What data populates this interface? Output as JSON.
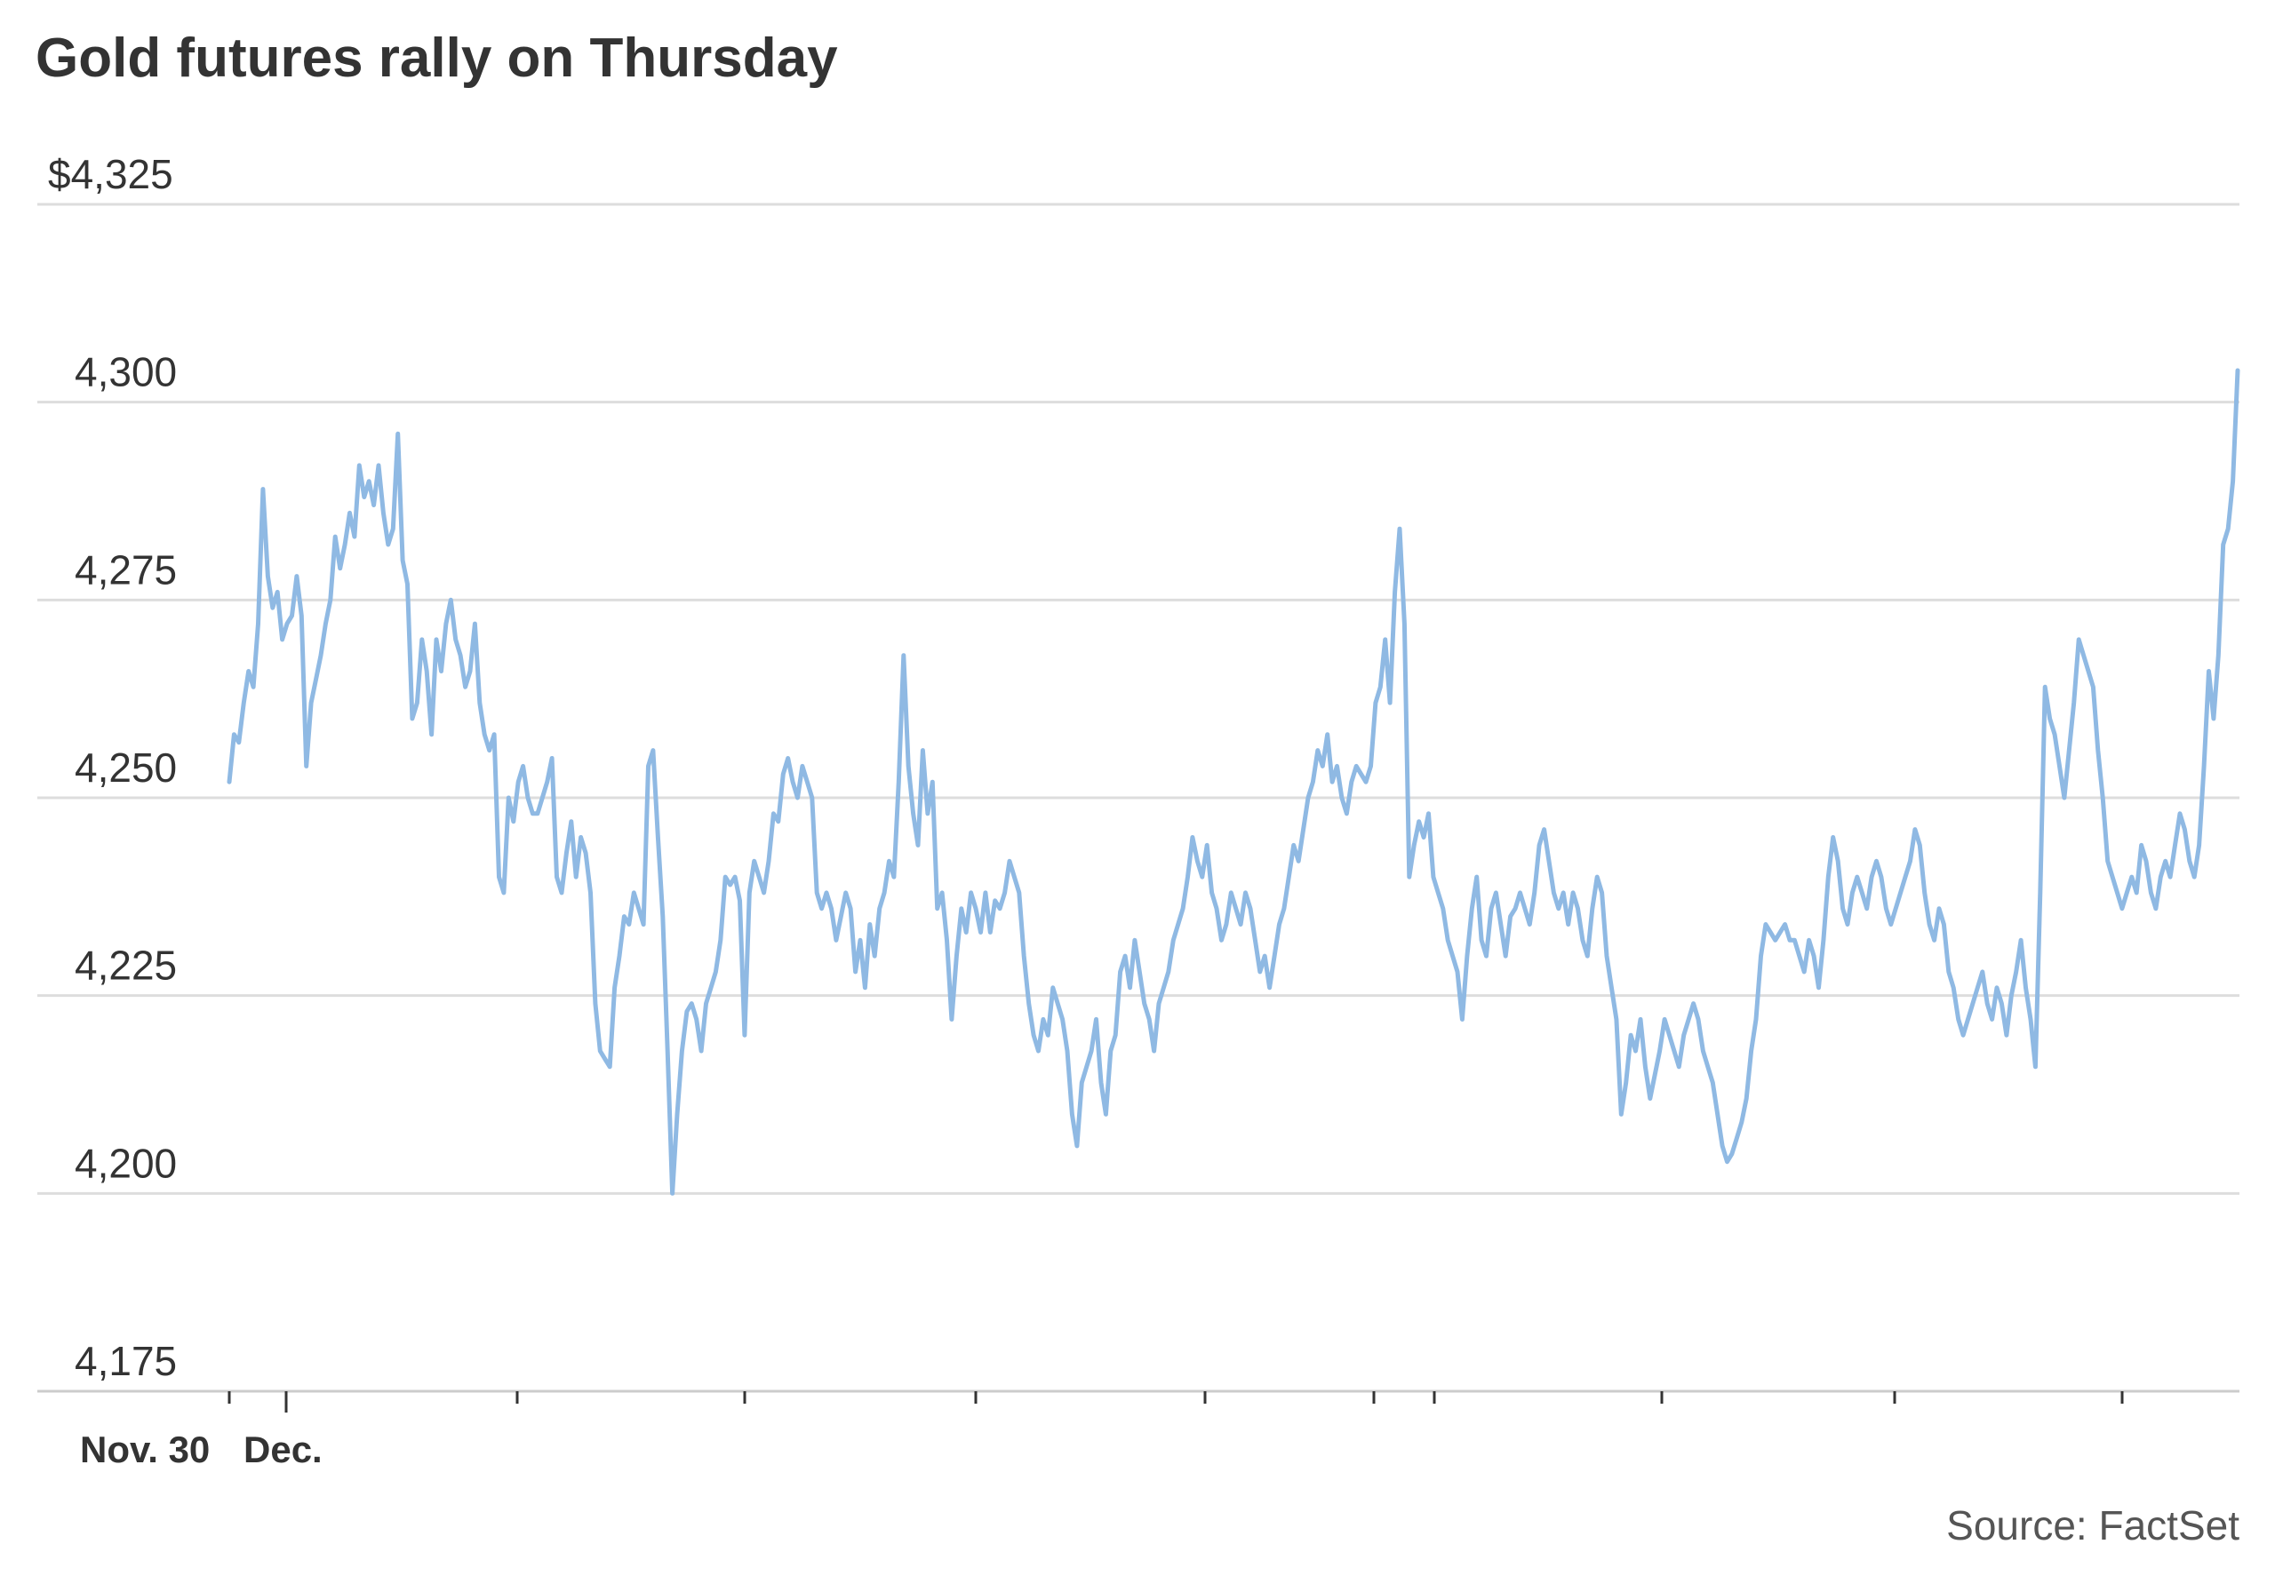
{
  "header": {
    "title": "Gold futures rally on Thursday"
  },
  "footer": {
    "source": "Source: FactSet"
  },
  "colors": {
    "line": "#8fb9e3",
    "grid": "#dddddd",
    "axis": "#cccccc",
    "text": "#333333"
  },
  "chart_data": {
    "type": "line",
    "title": "Gold futures rally on Thursday",
    "xlabel": "",
    "ylabel": "",
    "ylim": [
      4175,
      4325
    ],
    "y_ticks": [
      {
        "value": 4325,
        "label": "$4,325"
      },
      {
        "value": 4300,
        "label": "4,300"
      },
      {
        "value": 4275,
        "label": "4,275"
      },
      {
        "value": 4250,
        "label": "4,250"
      },
      {
        "value": 4225,
        "label": "4,225"
      },
      {
        "value": 4200,
        "label": "4,200"
      },
      {
        "value": 4175,
        "label": "4,175"
      }
    ],
    "x_tick_labels": [
      "Nov. 30",
      "Dec."
    ],
    "grid": true,
    "legend": "none",
    "series": [
      {
        "values": [
          4252,
          4258,
          4257,
          4262,
          4266,
          4264,
          4272,
          4289,
          4278,
          4274,
          4276,
          4270,
          4272,
          4273,
          4278,
          4273,
          4254,
          4262,
          4265,
          4268,
          4272,
          4275,
          4283,
          4279,
          4282,
          4286,
          4283,
          4292,
          4288,
          4290,
          4287,
          4292,
          4286,
          4282,
          4284,
          4296,
          4280,
          4277,
          4260,
          4262,
          4270,
          4266,
          4258,
          4270,
          4266,
          4272,
          4275,
          4270,
          4268,
          4264,
          4266,
          4272,
          4262,
          4258,
          4256,
          4258,
          4240,
          4238,
          4250,
          4247,
          4252,
          4254,
          4250,
          4248,
          4248,
          4250,
          4252,
          4255,
          4240,
          4238,
          4243,
          4247,
          4240,
          4245,
          4243,
          4238,
          4224,
          4218,
          4217,
          4216,
          4226,
          4230,
          4235,
          4234,
          4238,
          4236,
          4234,
          4254,
          4256,
          4245,
          4235,
          4218,
          4200,
          4210,
          4218,
          4223,
          4224,
          4222,
          4218,
          4224,
          4226,
          4228,
          4232,
          4240,
          4239,
          4240,
          4237,
          4220,
          4238,
          4242,
          4240,
          4238,
          4242,
          4248,
          4247,
          4253,
          4255,
          4252,
          4250,
          4254,
          4252,
          4250,
          4238,
          4236,
          4238,
          4236,
          4232,
          4235,
          4238,
          4236,
          4228,
          4232,
          4226,
          4234,
          4230,
          4236,
          4238,
          4242,
          4240,
          4252,
          4268,
          4254,
          4248,
          4244,
          4256,
          4248,
          4252,
          4236,
          4238,
          4232,
          4222,
          4230,
          4236,
          4233,
          4238,
          4236,
          4233,
          4238,
          4233,
          4237,
          4236,
          4238,
          4242,
          4240,
          4238,
          4230,
          4224,
          4220,
          4218,
          4222,
          4220,
          4226,
          4224,
          4222,
          4218,
          4210,
          4206,
          4214,
          4216,
          4218,
          4222,
          4214,
          4210,
          4218,
          4220,
          4228,
          4230,
          4226,
          4232,
          4228,
          4224,
          4222,
          4218,
          4224,
          4226,
          4228,
          4232,
          4234,
          4236,
          4240,
          4245,
          4242,
          4240,
          4244,
          4238,
          4236,
          4232,
          4234,
          4238,
          4236,
          4234,
          4238,
          4236,
          4232,
          4228,
          4230,
          4226,
          4230,
          4234,
          4236,
          4240,
          4244,
          4242,
          4246,
          4250,
          4252,
          4256,
          4254,
          4258,
          4252,
          4254,
          4250,
          4248,
          4252,
          4254,
          4253,
          4252,
          4254,
          4262,
          4264,
          4270,
          4262,
          4276,
          4284,
          4272,
          4240,
          4244,
          4247,
          4245,
          4248,
          4240,
          4238,
          4236,
          4232,
          4230,
          4228,
          4222,
          4230,
          4236,
          4240,
          4232,
          4230,
          4236,
          4238,
          4234,
          4230,
          4235,
          4236,
          4238,
          4236,
          4234,
          4238,
          4244,
          4246,
          4242,
          4238,
          4236,
          4238,
          4234,
          4238,
          4236,
          4232,
          4230,
          4236,
          4240,
          4238,
          4230,
          4226,
          4222,
          4210,
          4214,
          4220,
          4218,
          4222,
          4216,
          4212,
          4215,
          4218,
          4222,
          4220,
          4218,
          4216,
          4220,
          4222,
          4224,
          4222,
          4218,
          4216,
          4214,
          4210,
          4206,
          4204,
          4205,
          4207,
          4209,
          4212,
          4218,
          4222,
          4230,
          4234,
          4233,
          4232,
          4233,
          4234,
          4232,
          4232,
          4230,
          4228,
          4232,
          4230,
          4226,
          4232,
          4240,
          4245,
          4242,
          4236,
          4234,
          4238,
          4240,
          4238,
          4236,
          4240,
          4242,
          4240,
          4236,
          4234,
          4236,
          4238,
          4240,
          4242,
          4246,
          4244,
          4238,
          4234,
          4232,
          4236,
          4234,
          4228,
          4226,
          4222,
          4220,
          4222,
          4224,
          4226,
          4228,
          4224,
          4222,
          4226,
          4224,
          4220,
          4225,
          4228,
          4232,
          4226,
          4222,
          4216,
          4238,
          4264,
          4260,
          4258,
          4254,
          4250,
          4256,
          4262,
          4270,
          4268,
          4266,
          4264,
          4256,
          4250,
          4242,
          4240,
          4238,
          4236,
          4238,
          4240,
          4238,
          4244,
          4242,
          4238,
          4236,
          4240,
          4242,
          4240,
          4244,
          4248,
          4246,
          4242,
          4240,
          4244,
          4254,
          4266,
          4260,
          4268,
          4282,
          4284,
          4290,
          4304
        ]
      }
    ]
  }
}
